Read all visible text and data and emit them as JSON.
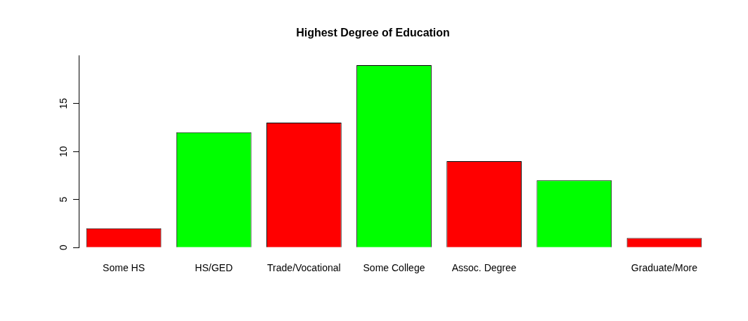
{
  "chart_data": {
    "type": "bar",
    "title": "Highest Degree of Education",
    "categories": [
      "Some HS",
      "HS/GED",
      "Trade/Vocational",
      "Some College",
      "Assoc. Degree",
      null,
      "Graduate/More"
    ],
    "values": [
      2,
      12,
      13,
      19,
      9,
      7,
      1
    ],
    "colors": [
      "#ff0000",
      "#00ff00",
      "#ff0000",
      "#00ff00",
      "#ff0000",
      "#00ff00",
      "#ff0000"
    ],
    "ylim": [
      0,
      20
    ],
    "yticks": [
      0,
      5,
      10,
      15
    ],
    "grid": false,
    "legend": false
  }
}
